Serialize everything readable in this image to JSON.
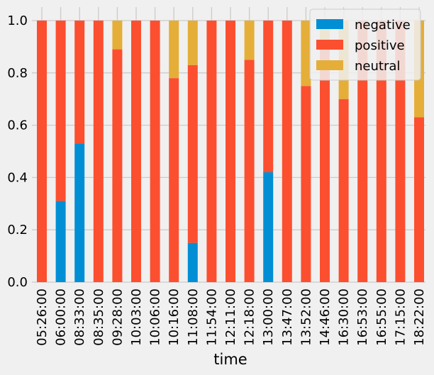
{
  "chart_data": {
    "type": "bar",
    "stacked": true,
    "title": "",
    "xlabel": "time",
    "ylabel": "",
    "ylim": [
      0,
      1.0
    ],
    "yticks": [
      "0.0",
      "0.2",
      "0.4",
      "0.6",
      "0.8",
      "1.0"
    ],
    "grid": true,
    "legend_position": "top-right",
    "categories": [
      "05:26:00",
      "06:00:00",
      "08:33:00",
      "08:35:00",
      "09:28:00",
      "10:03:00",
      "10:06:00",
      "10:16:00",
      "11:08:00",
      "11:54:00",
      "12:11:00",
      "12:18:00",
      "13:00:00",
      "13:47:00",
      "13:52:00",
      "14:46:00",
      "16:30:00",
      "16:53:00",
      "16:55:00",
      "17:15:00",
      "18:22:00"
    ],
    "series": [
      {
        "name": "negative",
        "color": "#008fd5",
        "values": [
          0,
          0.31,
          0.53,
          0,
          0,
          0,
          0,
          0,
          0.15,
          0,
          0,
          0,
          0.42,
          0,
          0,
          0,
          0,
          0,
          0,
          0,
          0
        ]
      },
      {
        "name": "positive",
        "color": "#fc4f30",
        "values": [
          1.0,
          0.69,
          0.47,
          1.0,
          0.89,
          1.0,
          1.0,
          0.78,
          0.68,
          1.0,
          1.0,
          0.85,
          0.58,
          1.0,
          0.75,
          0.9,
          0.7,
          1.0,
          1.0,
          1.0,
          0.63
        ]
      },
      {
        "name": "neutral",
        "color": "#e5ae38",
        "values": [
          0,
          0,
          0,
          0,
          0.11,
          0,
          0,
          0.22,
          0.17,
          0,
          0,
          0.15,
          0,
          0,
          0.25,
          0.1,
          0.3,
          0,
          0,
          0,
          0.37
        ]
      }
    ]
  }
}
